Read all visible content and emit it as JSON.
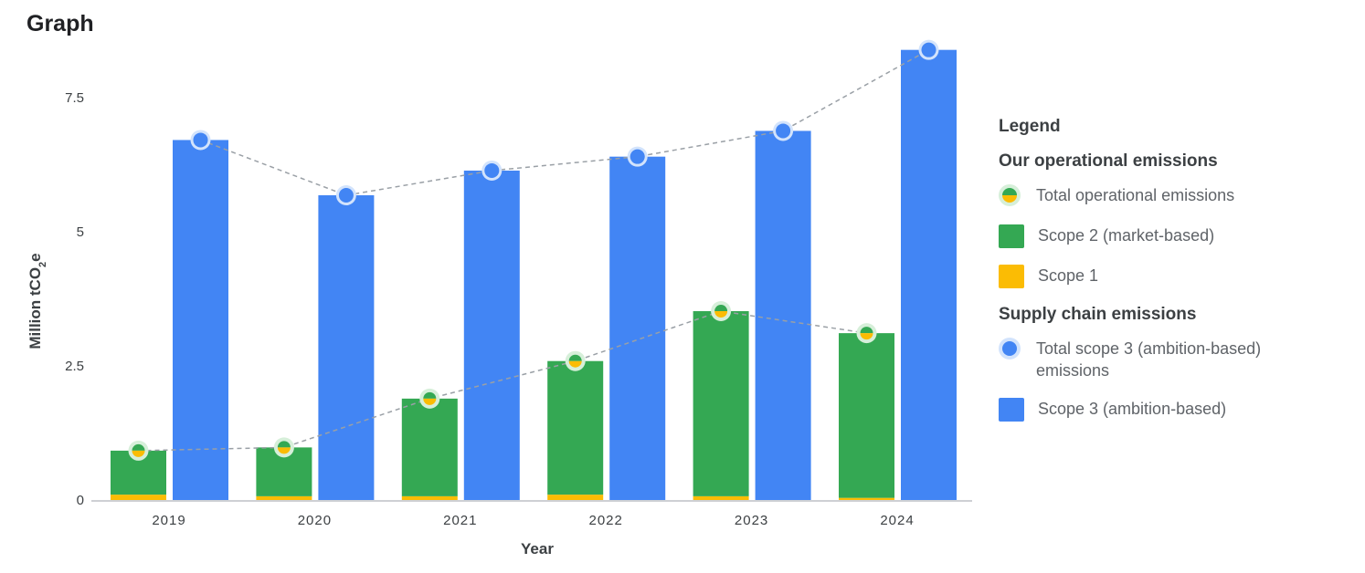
{
  "page": {
    "title": "Graph"
  },
  "colors": {
    "scope1": "#fbbc04",
    "scope2": "#34a853",
    "scope3": "#4285f4",
    "ring": "#d2e3fc",
    "trend": "#9aa0a6"
  },
  "legend": {
    "title": "Legend",
    "groups": [
      {
        "title": "Our operational emissions",
        "items": [
          {
            "label": "Total operational emissions",
            "icon": "half-green-yellow-dot-icon"
          },
          {
            "label": "Scope 2 (market-based)",
            "icon": "green-square-icon"
          },
          {
            "label": "Scope 1",
            "icon": "yellow-square-icon"
          }
        ]
      },
      {
        "title": "Supply chain emissions",
        "items": [
          {
            "label": "Total scope 3 (ambition-based) emissions",
            "icon": "blue-dot-icon"
          },
          {
            "label": "Scope 3 (ambition-based)",
            "icon": "blue-square-icon"
          }
        ]
      }
    ]
  },
  "chart_data": {
    "type": "bar",
    "xlabel": "Year",
    "ylabel": "Million tCO",
    "ylabel_sub": "2",
    "ylabel_suffix": "e",
    "ylim": [
      0,
      8.4
    ],
    "yticks": [
      0,
      2.5,
      5,
      7.5
    ],
    "ytick_labels": [
      "0",
      "2.5",
      "5",
      "7.5"
    ],
    "categories": [
      "2019",
      "2020",
      "2021",
      "2022",
      "2023",
      "2024"
    ],
    "grid": false,
    "series": [
      {
        "name": "Scope 1",
        "values": [
          0.1,
          0.07,
          0.07,
          0.1,
          0.07,
          0.04
        ]
      },
      {
        "name": "Scope 2 (market-based)",
        "values": [
          0.82,
          0.91,
          1.82,
          2.49,
          3.45,
          3.07
        ]
      },
      {
        "name": "Total operational emissions",
        "values": [
          0.92,
          0.98,
          1.89,
          2.59,
          3.52,
          3.11
        ]
      },
      {
        "name": "Scope 3 (ambition-based)",
        "values": [
          6.71,
          5.68,
          6.14,
          6.4,
          6.88,
          8.39
        ]
      },
      {
        "name": "Total scope 3 (ambition-based) emissions",
        "values": [
          6.71,
          5.68,
          6.14,
          6.4,
          6.88,
          8.39
        ]
      }
    ]
  }
}
